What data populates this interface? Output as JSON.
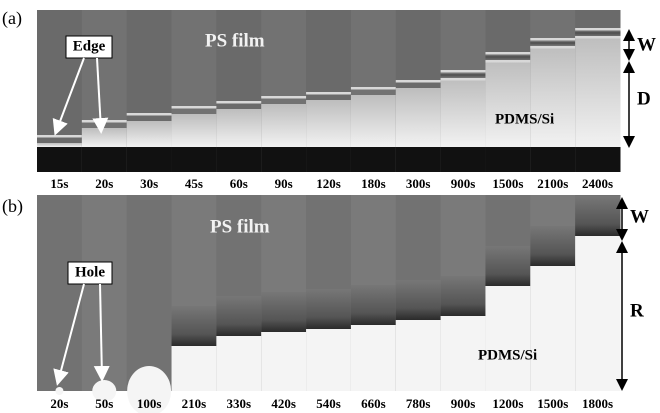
{
  "panels": [
    {
      "label": "(a)",
      "callout": "Edge",
      "film_label": "PS film",
      "substrate_label": "PDMS/Si",
      "dimension_labels": [
        "W",
        "D"
      ],
      "times": [
        "15s",
        "20s",
        "30s",
        "45s",
        "60s",
        "90s",
        "120s",
        "180s",
        "300s",
        "900s",
        "1500s",
        "2100s",
        "2400s"
      ]
    },
    {
      "label": "(b)",
      "callout": "Hole",
      "film_label": "PS film",
      "substrate_label": "PDMS/Si",
      "dimension_labels": [
        "W",
        "R"
      ],
      "times": [
        "20s",
        "50s",
        "100s",
        "210s",
        "330s",
        "420s",
        "540s",
        "660s",
        "780s",
        "900s",
        "1200s",
        "1500s",
        "1800s"
      ]
    }
  ]
}
